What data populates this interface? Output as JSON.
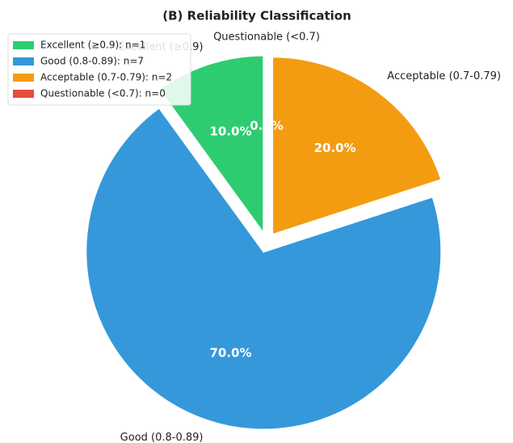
{
  "chart_data": {
    "type": "pie",
    "title": "(B) Reliability Classification",
    "categories": [
      "Excellent (≥0.9)",
      "Good (0.8-0.89)",
      "Acceptable (0.7-0.79)",
      "Questionable (<0.7)"
    ],
    "values": [
      10,
      70,
      20,
      0
    ],
    "value_labels": [
      "10.0%",
      "70.0%",
      "20.0%",
      "0.0%"
    ],
    "colors": [
      "#2ecc71",
      "#3498db",
      "#f39c12",
      "#e74c3c"
    ],
    "legend_labels": [
      "Excellent (≥0.9): n=1",
      "Good (0.8-0.89): n=7",
      "Acceptable (0.7-0.79): n=2",
      "Questionable (<0.7): n=0"
    ],
    "legend": "upper left"
  }
}
